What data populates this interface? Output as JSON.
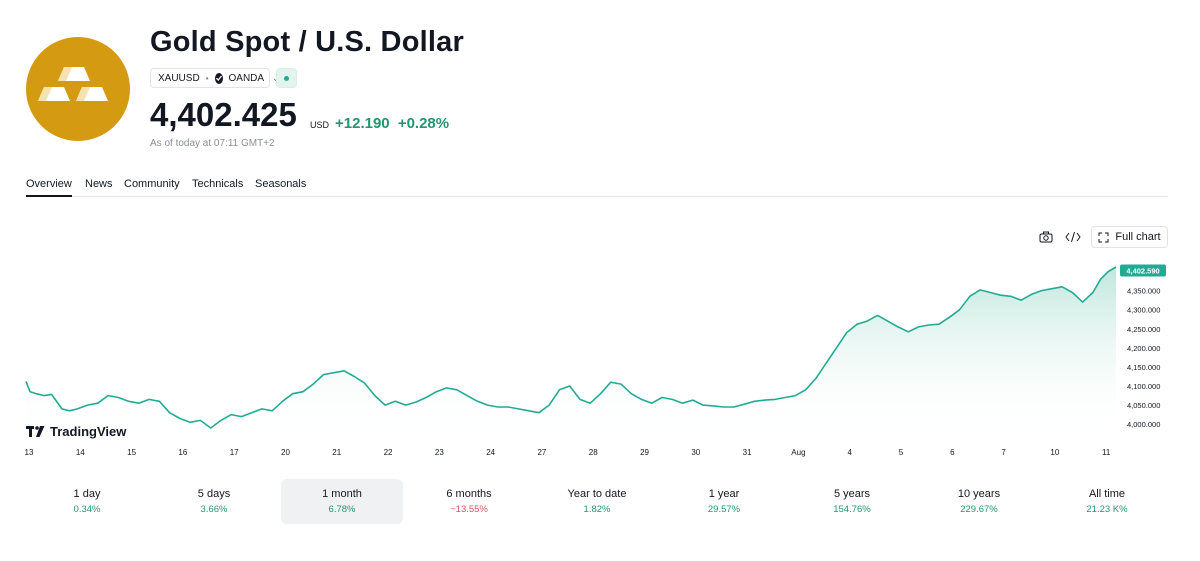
{
  "header": {
    "title": "Gold Spot / U.S. Dollar",
    "symbol": "XAUUSD",
    "exchange": "OANDA",
    "price": "4,402.425",
    "currency": "USD",
    "change_abs": "+12.190",
    "change_pct": "+0.28%",
    "as_of": "As of today at 07:11 GMT+2",
    "icons": [
      "gold-bars-icon",
      "verified-check-icon",
      "chevron-down-icon",
      "market-open-dot-icon"
    ]
  },
  "tabs": [
    {
      "label": "Overview",
      "active": true
    },
    {
      "label": "News",
      "active": false
    },
    {
      "label": "Community",
      "active": false
    },
    {
      "label": "Technicals",
      "active": false
    },
    {
      "label": "Seasonals",
      "active": false
    }
  ],
  "chart_toolbar": {
    "full_chart_label": "Full chart",
    "icons": [
      "camera-icon",
      "embed-code-icon",
      "fullscreen-icon"
    ]
  },
  "branding": {
    "label": "TradingView"
  },
  "colors": {
    "line": "#22ab94",
    "area_top": "#b8e4d8",
    "positive": "#22976f",
    "negative": "#e0515f",
    "logo_bg": "#d49a12",
    "price_tag_bg": "#22ab94"
  },
  "chart_data": {
    "type": "area",
    "x_ticks": [
      "13",
      "14",
      "15",
      "16",
      "17",
      "20",
      "21",
      "22",
      "23",
      "24",
      "27",
      "28",
      "29",
      "30",
      "31",
      "Aug",
      "4",
      "5",
      "6",
      "7",
      "10",
      "11"
    ],
    "y_ticks": [
      "4,000.000",
      "4,050.000",
      "4,100.000",
      "4,150.000",
      "4,200.000",
      "4,250.000",
      "4,300.000",
      "4,350.000"
    ],
    "ylim": [
      3990,
      4425
    ],
    "last_price_label": "4,402.590",
    "last_price": 4402.59,
    "grid": false,
    "series": [
      {
        "x": [
          0,
          0.08,
          0.2,
          0.35,
          0.5,
          0.7,
          0.85,
          1.0,
          1.2,
          1.4,
          1.6,
          1.8,
          2.0,
          2.2,
          2.4,
          2.6,
          2.8,
          3.0,
          3.2,
          3.4,
          3.6,
          3.8,
          4.0,
          4.2,
          4.4,
          4.6,
          4.8,
          5.0,
          5.2,
          5.4,
          5.6,
          5.8,
          6.0,
          6.2,
          6.4,
          6.6,
          6.8,
          7.0,
          7.2,
          7.4,
          7.6,
          7.8,
          8.0,
          8.2,
          8.4,
          8.6,
          8.8,
          9.0,
          9.2,
          9.4,
          9.6,
          9.8,
          10.0,
          10.2,
          10.4,
          10.6,
          10.8,
          11.0,
          11.2,
          11.4,
          11.6,
          11.8,
          12.0,
          12.2,
          12.4,
          12.6,
          12.8,
          13.0,
          13.2,
          13.4,
          13.6,
          13.8,
          14.0,
          14.2,
          14.4,
          14.6,
          14.8,
          15.0,
          15.2,
          15.4,
          15.6,
          15.8,
          16.0,
          16.2,
          16.4,
          16.6,
          16.8,
          17.0,
          17.2,
          17.4,
          17.6,
          17.8,
          18.0,
          18.2,
          18.4,
          18.6,
          18.8,
          19.0,
          19.2,
          19.4,
          19.6,
          19.8,
          20.0,
          20.2,
          20.4,
          20.6,
          20.8,
          20.95,
          21.1,
          21.25
        ],
        "y": [
          4112,
          4085,
          4080,
          4075,
          4078,
          4040,
          4035,
          4040,
          4050,
          4055,
          4075,
          4070,
          4060,
          4055,
          4065,
          4060,
          4030,
          4015,
          4005,
          4010,
          3990,
          4010,
          4025,
          4020,
          4030,
          4040,
          4035,
          4060,
          4080,
          4085,
          4105,
          4130,
          4135,
          4140,
          4125,
          4108,
          4075,
          4050,
          4060,
          4050,
          4058,
          4070,
          4085,
          4095,
          4090,
          4075,
          4060,
          4050,
          4045,
          4045,
          4040,
          4035,
          4030,
          4050,
          4090,
          4100,
          4065,
          4055,
          4080,
          4110,
          4105,
          4080,
          4065,
          4055,
          4070,
          4065,
          4055,
          4063,
          4050,
          4048,
          4045,
          4045,
          4052,
          4060,
          4063,
          4065,
          4070,
          4075,
          4090,
          4120,
          4160,
          4200,
          4240,
          4262,
          4270,
          4285,
          4270,
          4255,
          4242,
          4255,
          4260,
          4262,
          4280,
          4300,
          4335,
          4352,
          4345,
          4338,
          4335,
          4325,
          4340,
          4350,
          4355,
          4360,
          4345,
          4320,
          4345,
          4380,
          4400,
          4412
        ],
        "fill": true
      }
    ]
  },
  "periods": [
    {
      "label": "1 day",
      "value": "0.34%",
      "direction": "up",
      "selected": false
    },
    {
      "label": "5 days",
      "value": "3.66%",
      "direction": "up",
      "selected": false
    },
    {
      "label": "1 month",
      "value": "6.78%",
      "direction": "up",
      "selected": true
    },
    {
      "label": "6 months",
      "value": "−13.55%",
      "direction": "down",
      "selected": false
    },
    {
      "label": "Year to date",
      "value": "1.82%",
      "direction": "up",
      "selected": false
    },
    {
      "label": "1 year",
      "value": "29.57%",
      "direction": "up",
      "selected": false
    },
    {
      "label": "5 years",
      "value": "154.76%",
      "direction": "up",
      "selected": false
    },
    {
      "label": "10 years",
      "value": "229.67%",
      "direction": "up",
      "selected": false
    },
    {
      "label": "All time",
      "value": "21.23 K%",
      "direction": "up",
      "selected": false
    }
  ]
}
